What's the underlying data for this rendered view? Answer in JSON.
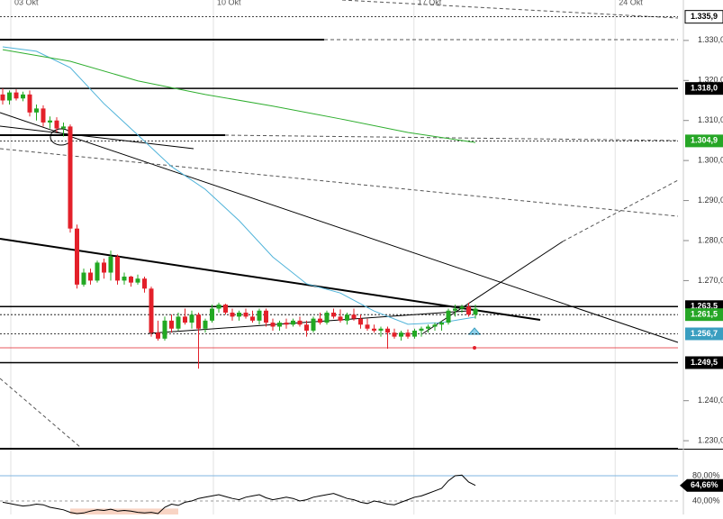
{
  "chart_data": {
    "type": "candlestick",
    "xlim": [
      -0.4,
      100
    ],
    "xticks": [
      {
        "value": 1.2,
        "label": "03 Okt"
      },
      {
        "value": 31.2,
        "label": "10 Okt"
      },
      {
        "value": 60.9,
        "label": "17 Okt"
      },
      {
        "value": 90.7,
        "label": "24 Okt"
      }
    ],
    "ylim": [
      1.228,
      1.3401
    ],
    "yticks": [
      {
        "value": 1.33,
        "label": "1.330,0"
      },
      {
        "value": 1.32,
        "label": "1.320,0"
      },
      {
        "value": 1.31,
        "label": "1.310,0"
      },
      {
        "value": 1.3,
        "label": "1.300,0"
      },
      {
        "value": 1.29,
        "label": "1.290,0"
      },
      {
        "value": 1.28,
        "label": "1.280,0"
      },
      {
        "value": 1.27,
        "label": "1.270,0"
      },
      {
        "value": 1.24,
        "label": "1.240,0"
      },
      {
        "value": 1.23,
        "label": "1.230,0"
      }
    ],
    "up_color": "#22a822",
    "down_color": "#e3202a",
    "open": [
      1.3165,
      1.315,
      1.317,
      1.3155,
      1.3165,
      1.312,
      1.313,
      1.3095,
      1.31,
      1.308,
      1.3085,
      1.283,
      1.269,
      1.272,
      1.27,
      1.2745,
      1.272,
      1.276,
      1.27,
      1.271,
      1.2695,
      1.2705,
      1.268,
      1.257,
      1.2555,
      1.26,
      1.258,
      1.261,
      1.2595,
      1.2615,
      1.258,
      1.26,
      1.263,
      1.264,
      1.262,
      1.261,
      1.262,
      1.261,
      1.26,
      1.2625,
      1.2595,
      1.2585,
      1.2595,
      1.259,
      1.26,
      1.259,
      1.2575,
      1.2605,
      1.2595,
      1.262,
      1.261,
      1.26,
      1.2615,
      1.2605,
      1.259,
      1.258,
      1.2575,
      1.258,
      1.257,
      1.256,
      1.257,
      1.256,
      1.2575,
      1.258,
      1.2585,
      1.259,
      1.2595,
      1.2625,
      1.263,
      1.2635,
      1.2615
    ],
    "high": [
      1.318,
      1.3175,
      1.3178,
      1.3172,
      1.3175,
      1.314,
      1.3138,
      1.311,
      1.3108,
      1.3095,
      1.309,
      1.284,
      1.273,
      1.273,
      1.275,
      1.2755,
      1.2775,
      1.2765,
      1.272,
      1.2712,
      1.2715,
      1.271,
      1.2685,
      1.26,
      1.261,
      1.2615,
      1.262,
      1.263,
      1.2625,
      1.262,
      1.2605,
      1.264,
      1.2645,
      1.2642,
      1.263,
      1.2625,
      1.263,
      1.2625,
      1.263,
      1.263,
      1.2605,
      1.26,
      1.2605,
      1.2605,
      1.261,
      1.26,
      1.261,
      1.262,
      1.2625,
      1.263,
      1.2628,
      1.262,
      1.263,
      1.2615,
      1.2605,
      1.259,
      1.2585,
      1.2585,
      1.258,
      1.2575,
      1.2578,
      1.258,
      1.2585,
      1.259,
      1.2595,
      1.26,
      1.263,
      1.264,
      1.264,
      1.2645,
      1.264
    ],
    "low": [
      1.314,
      1.314,
      1.315,
      1.3148,
      1.311,
      1.31,
      1.3085,
      1.308,
      1.307,
      1.306,
      1.282,
      1.268,
      1.2685,
      1.269,
      1.2695,
      1.2705,
      1.27,
      1.269,
      1.269,
      1.2685,
      1.269,
      1.267,
      1.256,
      1.255,
      1.255,
      1.257,
      1.2575,
      1.259,
      1.258,
      1.248,
      1.257,
      1.2595,
      1.262,
      1.2615,
      1.26,
      1.26,
      1.2605,
      1.2595,
      1.259,
      1.2585,
      1.2575,
      1.2575,
      1.258,
      1.2585,
      1.2585,
      1.256,
      1.257,
      1.259,
      1.259,
      1.2605,
      1.2595,
      1.259,
      1.26,
      1.258,
      1.2575,
      1.257,
      1.256,
      1.253,
      1.2555,
      1.255,
      1.2555,
      1.2555,
      1.256,
      1.257,
      1.2575,
      1.2575,
      1.259,
      1.261,
      1.262,
      1.261,
      1.2605
    ],
    "close": [
      1.315,
      1.317,
      1.3155,
      1.3165,
      1.312,
      1.313,
      1.3095,
      1.31,
      1.308,
      1.3085,
      1.283,
      1.269,
      1.272,
      1.27,
      1.2745,
      1.272,
      1.276,
      1.27,
      1.271,
      1.2695,
      1.2705,
      1.268,
      1.257,
      1.2555,
      1.26,
      1.258,
      1.261,
      1.2595,
      1.2615,
      1.258,
      1.26,
      1.263,
      1.264,
      1.262,
      1.261,
      1.262,
      1.261,
      1.26,
      1.2625,
      1.2595,
      1.2585,
      1.2595,
      1.259,
      1.26,
      1.259,
      1.2575,
      1.2605,
      1.2595,
      1.262,
      1.261,
      1.26,
      1.2615,
      1.2605,
      1.259,
      1.258,
      1.2575,
      1.258,
      1.257,
      1.256,
      1.257,
      1.256,
      1.2575,
      1.258,
      1.2585,
      1.259,
      1.2595,
      1.2625,
      1.263,
      1.2635,
      1.2615,
      1.263
    ],
    "moving_averages": [
      {
        "color": "#4fb3d9",
        "x": [
          0,
          5,
          10,
          15,
          20,
          25,
          30,
          35,
          40,
          45,
          50,
          55,
          60,
          65,
          70
        ],
        "values": [
          1.3284,
          1.3273,
          1.3232,
          1.3142,
          1.3064,
          1.2985,
          1.2928,
          1.285,
          1.2759,
          1.2692,
          1.2669,
          1.2624,
          1.2591,
          1.2595,
          1.2609
        ]
      },
      {
        "color": "#2fae2f",
        "x": [
          0,
          10,
          20,
          30,
          40,
          50,
          60,
          70
        ],
        "values": [
          1.3277,
          1.3248,
          1.3199,
          1.3165,
          1.3136,
          1.3104,
          1.307,
          1.3045
        ]
      }
    ],
    "price_levels": [
      {
        "value": 1.3359,
        "label": "1.335,9",
        "color": "#ffffff"
      },
      {
        "value": 1.318,
        "label": "1.318,0",
        "color": "#000000"
      },
      {
        "value": 1.3049,
        "label": "1.304,9",
        "color": "#26a626"
      },
      {
        "value": 1.2635,
        "label": "1.263,5",
        "color": "#000000"
      },
      {
        "value": 1.2615,
        "label": "1.261,5",
        "color": "#26a626"
      },
      {
        "value": 1.2567,
        "label": "1.256,7",
        "color": "#3a9ec0"
      },
      {
        "value": 1.2495,
        "label": "1.249,5",
        "color": "#000000"
      }
    ],
    "indicator": {
      "type": "line",
      "color": "#000000",
      "ylim": [
        20,
        120
      ],
      "yticks": [
        {
          "value": 80,
          "label": "80,00%"
        },
        {
          "value": 40,
          "label": "40,00%"
        }
      ],
      "values": [
        38,
        36,
        34,
        32,
        33,
        35,
        34,
        30,
        28,
        26,
        22,
        20,
        21,
        24,
        26,
        25,
        27,
        24,
        25,
        24,
        22,
        21,
        22,
        20,
        30,
        35,
        33,
        38,
        40,
        44,
        46,
        48,
        50,
        47,
        44,
        42,
        46,
        48,
        50,
        45,
        42,
        44,
        46,
        44,
        40,
        42,
        46,
        48,
        50,
        52,
        48,
        44,
        42,
        38,
        36,
        40,
        38,
        35,
        34,
        38,
        42,
        46,
        48,
        52,
        56,
        60,
        72,
        80,
        81,
        70,
        64.66
      ],
      "marker": {
        "value": 64.66,
        "label": "64,66%"
      }
    }
  }
}
